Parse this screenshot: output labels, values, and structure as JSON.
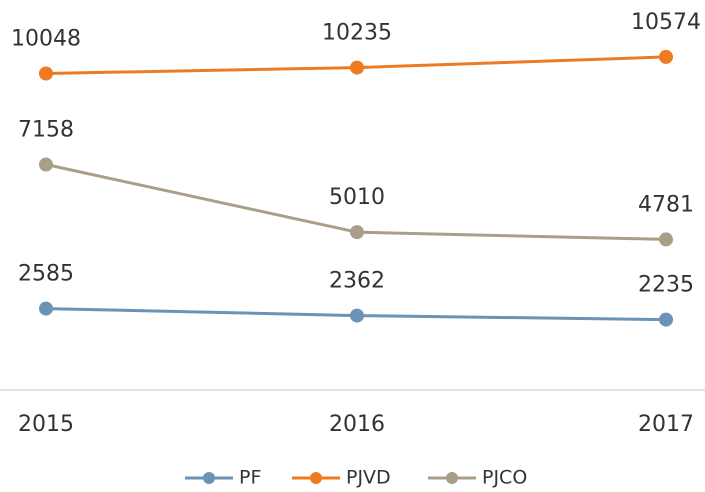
{
  "chart_data": {
    "type": "line",
    "categories": [
      "2015",
      "2016",
      "2017"
    ],
    "series": [
      {
        "name": "PF",
        "color": "#6b93b6",
        "values": [
          2585,
          2362,
          2235
        ]
      },
      {
        "name": "PJVD",
        "color": "#ee7a22",
        "values": [
          10048,
          10235,
          10574
        ]
      },
      {
        "name": "PJCO",
        "color": "#a99f88",
        "values": [
          7158,
          5010,
          4781
        ]
      }
    ],
    "ylim": [
      0,
      12000
    ]
  }
}
